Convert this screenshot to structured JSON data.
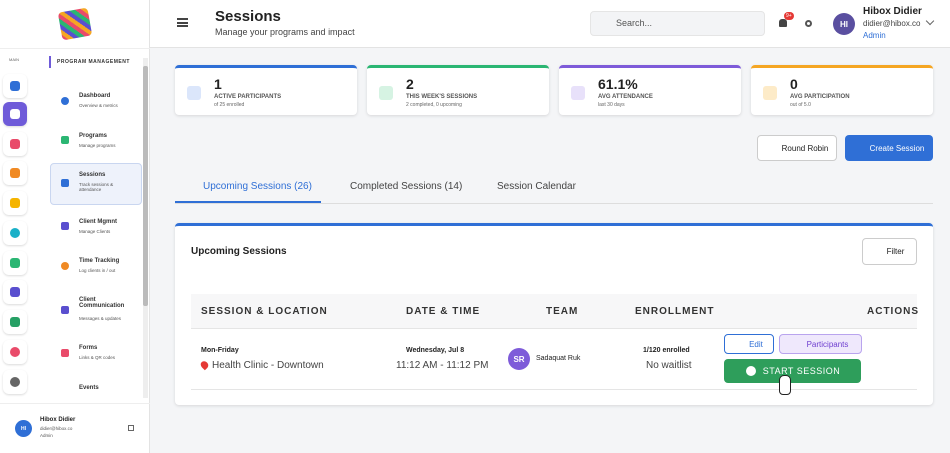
{
  "sidebar": {
    "main_label": "MAIN",
    "section_label": "PROGRAM MANAGEMENT",
    "nav": [
      {
        "title": "Dashboard",
        "sub": "Overview & metrics"
      },
      {
        "title": "Programs",
        "sub": "Manage programs"
      },
      {
        "title": "Sessions",
        "sub": "Track sessions & attendance"
      },
      {
        "title": "Client Mgmnt",
        "sub": "Manage Clients"
      },
      {
        "title": "Time Tracking",
        "sub": "Log clients in / out"
      },
      {
        "title": "Client Communication",
        "sub": "Messages & updates"
      },
      {
        "title": "Forms",
        "sub": "Links & QR codes"
      },
      {
        "title": "Events",
        "sub": null
      }
    ],
    "user": {
      "initials": "HI",
      "name": "Hibox Didier",
      "email": "didier@hibox.co",
      "role": "Admin"
    }
  },
  "header": {
    "title": "Sessions",
    "subtitle": "Manage your programs and impact",
    "search_placeholder": "Search...",
    "badge": "9+",
    "user": {
      "initials": "HI",
      "name": "Hibox Didier",
      "email": "didier@hibox.co",
      "role": "Admin"
    }
  },
  "stats": [
    {
      "value": "1",
      "label": "ACTIVE PARTICIPANTS",
      "sub": "of 25 enrolled"
    },
    {
      "value": "2",
      "label": "THIS WEEK'S SESSIONS",
      "sub": "2 completed, 0 upcoming"
    },
    {
      "value": "61.1%",
      "label": "AVG ATTENDANCE",
      "sub": "last 30 days"
    },
    {
      "value": "0",
      "label": "AVG PARTICIPATION",
      "sub": "out of 5.0"
    }
  ],
  "buttons": {
    "round_robin": "Round Robin",
    "create": "Create Session"
  },
  "tabs": [
    "Upcoming Sessions (26)",
    "Completed Sessions (14)",
    "Session Calendar"
  ],
  "card": {
    "title": "Upcoming Sessions",
    "filter": "Filter"
  },
  "table": {
    "headers": [
      "SESSION & LOCATION",
      "DATE & TIME",
      "TEAM",
      "ENROLLMENT",
      "ACTIONS"
    ],
    "rows": [
      {
        "schedule": "Mon-Friday",
        "location": "Health Clinic - Downtown",
        "date": "Wednesday, Jul 8",
        "time": "11:12 AM - 11:12 PM",
        "team_initials": "SR",
        "team_name": "Sadaquat Ruk",
        "enrolled": "1/120 enrolled",
        "waitlist": "No waitlist",
        "edit": "Edit",
        "participants": "Participants",
        "start": "START SESSION"
      }
    ]
  }
}
